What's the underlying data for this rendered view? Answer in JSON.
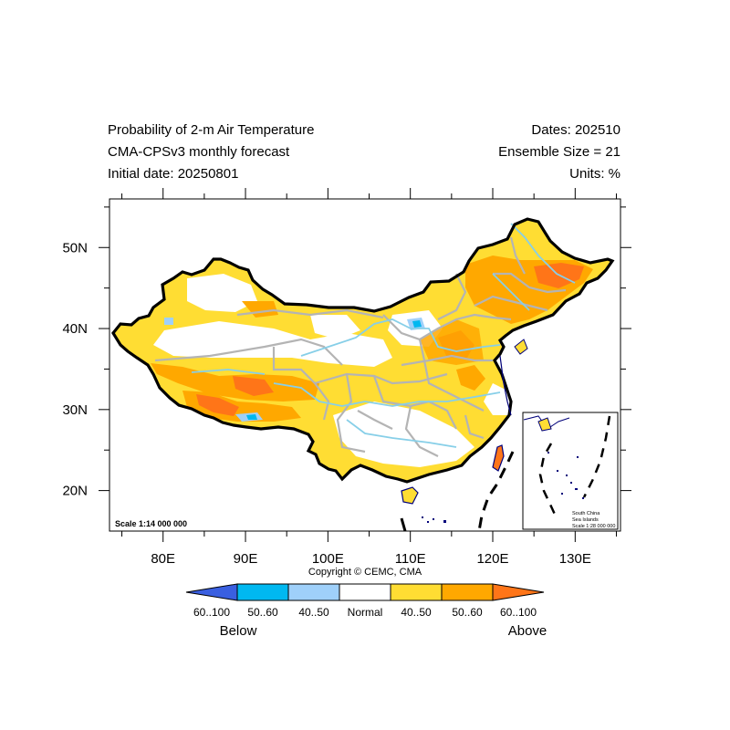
{
  "header": {
    "title_line1": "Probability of 2-m Air Temperature",
    "title_line2": "CMA-CPSv3 monthly forecast",
    "title_line3": "Initial date: 20250801",
    "right_line1": "Dates: 202510",
    "right_line2": "Ensemble Size = 21",
    "right_line3": "Units: %"
  },
  "axes": {
    "lat_labels": [
      "50N",
      "40N",
      "30N",
      "20N"
    ],
    "lon_labels": [
      "80E",
      "90E",
      "100E",
      "110E",
      "120E",
      "130E"
    ],
    "lat_range": [
      15,
      56
    ],
    "lon_range": [
      73.5,
      135.5
    ]
  },
  "map": {
    "scale_main": "Scale 1:14 000 000",
    "inset_title_1": "South China",
    "inset_title_2": "Sea Islands",
    "inset_scale": "Scale 1:28 000 000",
    "copyright": "Copyright © CEMC, CMA"
  },
  "colors": {
    "below_60_100": "#3a5fe0",
    "below_50_60": "#00b8f0",
    "below_40_50": "#9fd0fa",
    "normal": "#ffffff",
    "above_40_50": "#ffdd33",
    "above_50_60": "#ffa800",
    "above_60_100": "#ff7518",
    "river": "#87cfe8",
    "province": "#b4b4b4",
    "border": "#000000",
    "coast": "#00007a"
  },
  "legend": {
    "bins": [
      "60..100",
      "50..60",
      "40..50",
      "Normal",
      "40..50",
      "50..60",
      "60..100"
    ],
    "below_label": "Below",
    "above_label": "Above"
  }
}
